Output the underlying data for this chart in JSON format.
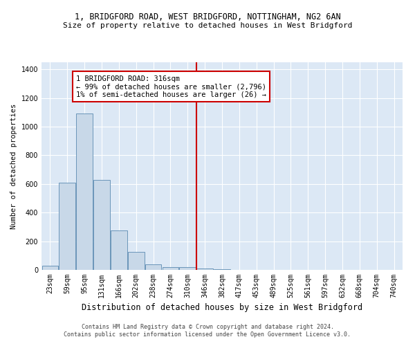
{
  "title_line1": "1, BRIDGFORD ROAD, WEST BRIDGFORD, NOTTINGHAM, NG2 6AN",
  "title_line2": "Size of property relative to detached houses in West Bridgford",
  "xlabel": "Distribution of detached houses by size in West Bridgford",
  "ylabel": "Number of detached properties",
  "footer_line1": "Contains HM Land Registry data © Crown copyright and database right 2024.",
  "footer_line2": "Contains public sector information licensed under the Open Government Licence v3.0.",
  "annotation_line1": "1 BRIDGFORD ROAD: 316sqm",
  "annotation_line2": "← 99% of detached houses are smaller (2,796)",
  "annotation_line3": "1% of semi-detached houses are larger (26) →",
  "bar_labels": [
    "23sqm",
    "59sqm",
    "95sqm",
    "131sqm",
    "166sqm",
    "202sqm",
    "238sqm",
    "274sqm",
    "310sqm",
    "346sqm",
    "382sqm",
    "417sqm",
    "453sqm",
    "489sqm",
    "525sqm",
    "561sqm",
    "597sqm",
    "632sqm",
    "668sqm",
    "704sqm",
    "740sqm"
  ],
  "bar_values": [
    30,
    610,
    1090,
    630,
    275,
    125,
    40,
    20,
    20,
    10,
    5,
    0,
    0,
    0,
    0,
    0,
    0,
    0,
    0,
    0,
    0
  ],
  "bar_color": "#c8d8e8",
  "bar_edge_color": "#5a8ab0",
  "vline_x_index": 8,
  "vline_color": "#cc0000",
  "annotation_box_color": "#cc0000",
  "background_color": "#dce8f5",
  "ylim": [
    0,
    1450
  ],
  "yticks": [
    0,
    200,
    400,
    600,
    800,
    1000,
    1200,
    1400
  ],
  "title1_fontsize": 8.5,
  "title2_fontsize": 8.0,
  "xlabel_fontsize": 8.5,
  "ylabel_fontsize": 7.5,
  "tick_fontsize": 7.0,
  "annotation_fontsize": 7.5,
  "footer_fontsize": 6.0
}
